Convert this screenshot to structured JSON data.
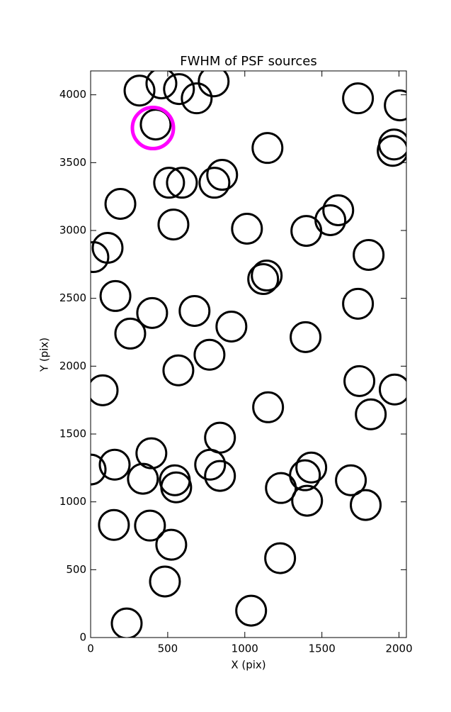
{
  "chart_data": {
    "type": "scatter",
    "title": "FWHM of PSF sources",
    "x_label": "X (pix)",
    "y_label": "Y (pix)",
    "xlim": [
      0,
      2048
    ],
    "ylim": [
      0,
      4176
    ],
    "xticks": [
      0,
      500,
      1000,
      1500,
      2000
    ],
    "yticks": [
      0,
      500,
      1000,
      1500,
      2000,
      2500,
      3000,
      3500,
      4000
    ],
    "grid": false,
    "series": [
      {
        "color": "#000000",
        "x": [
          317,
          459,
          573,
          688,
          798,
          422,
          1734,
          2005,
          1968,
          1959,
          1147,
          853,
          803,
          509,
          592,
          193,
          537,
          1014,
          1399,
          1555,
          1606,
          110,
          18,
          1803,
          1142,
          1119,
          161,
          1734,
          399,
          674,
          913,
          1394,
          257,
          771,
          569,
          78,
          1743,
          1972,
          1151,
          1817,
          839,
          394,
          156,
          775,
          0,
          546,
          339,
          555,
          839,
          1431,
          1390,
          1234,
          1688,
          1404,
          1784,
          151,
          385,
          523,
          1229,
          482,
          1041,
          234
        ],
        "values": [
          4031,
          4084,
          4042,
          3974,
          4099,
          3781,
          3974,
          3922,
          3634,
          3587,
          3608,
          3410,
          3352,
          3352,
          3352,
          3196,
          3044,
          3013,
          2997,
          3076,
          3149,
          2872,
          2804,
          2820,
          2668,
          2642,
          2517,
          2460,
          2392,
          2407,
          2292,
          2214,
          2240,
          2084,
          1969,
          1822,
          1890,
          1828,
          1697,
          1645,
          1473,
          1358,
          1274,
          1274,
          1238,
          1159,
          1170,
          1107,
          1191,
          1253,
          1196,
          1102,
          1159,
          1008,
          977,
          830,
          825,
          684,
          585,
          413,
          198,
          104
        ]
      },
      {
        "color": "#ff00ff",
        "x": [
          404
        ],
        "values": [
          3755
        ]
      }
    ]
  }
}
